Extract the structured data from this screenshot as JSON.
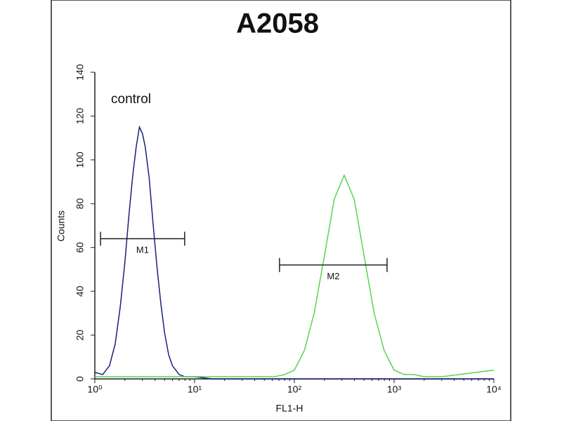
{
  "chart_data": {
    "type": "line",
    "title": "A2058",
    "x_label": "FL1-H",
    "y_label": "Counts",
    "x_log": true,
    "xlim": [
      1,
      10000
    ],
    "xticks": [
      {
        "value": 1,
        "label": "10⁰"
      },
      {
        "value": 10,
        "label": "10¹"
      },
      {
        "value": 100,
        "label": "10²"
      },
      {
        "value": 1000,
        "label": "10³"
      },
      {
        "value": 10000,
        "label": "10⁴"
      }
    ],
    "ylim": [
      0,
      140
    ],
    "yticks": [
      0,
      20,
      40,
      60,
      80,
      100,
      120,
      140
    ],
    "annotation": "control",
    "series": [
      {
        "color": "#1a1f7a",
        "x": [
          1,
          1.2,
          1.4,
          1.6,
          1.8,
          2,
          2.2,
          2.4,
          2.6,
          2.8,
          3,
          3.2,
          3.5,
          3.8,
          4.2,
          4.6,
          5,
          5.5,
          6,
          7,
          8,
          10,
          15,
          30,
          100,
          1000,
          10000
        ],
        "values": [
          3,
          2,
          6,
          16,
          33,
          53,
          75,
          93,
          106,
          115,
          112,
          106,
          92,
          73,
          51,
          34,
          21,
          11,
          6,
          2,
          1,
          1,
          0,
          0,
          0,
          0,
          0
        ]
      },
      {
        "color": "#55d455",
        "x": [
          1,
          10,
          20,
          30,
          40,
          50,
          63,
          80,
          100,
          126,
          158,
          200,
          251,
          316,
          398,
          501,
          631,
          794,
          1000,
          1259,
          1585,
          2000,
          3000,
          10000
        ],
        "values": [
          1,
          1,
          1,
          1,
          1,
          1,
          1,
          2,
          4,
          13,
          30,
          56,
          82,
          93,
          82,
          56,
          30,
          13,
          4,
          2,
          2,
          1,
          1,
          4
        ]
      }
    ],
    "markers": [
      {
        "label": "M1",
        "range": [
          1.14,
          7.95
        ],
        "y": 64
      },
      {
        "label": "M2",
        "range": [
          71,
          850
        ],
        "y": 52
      }
    ]
  }
}
